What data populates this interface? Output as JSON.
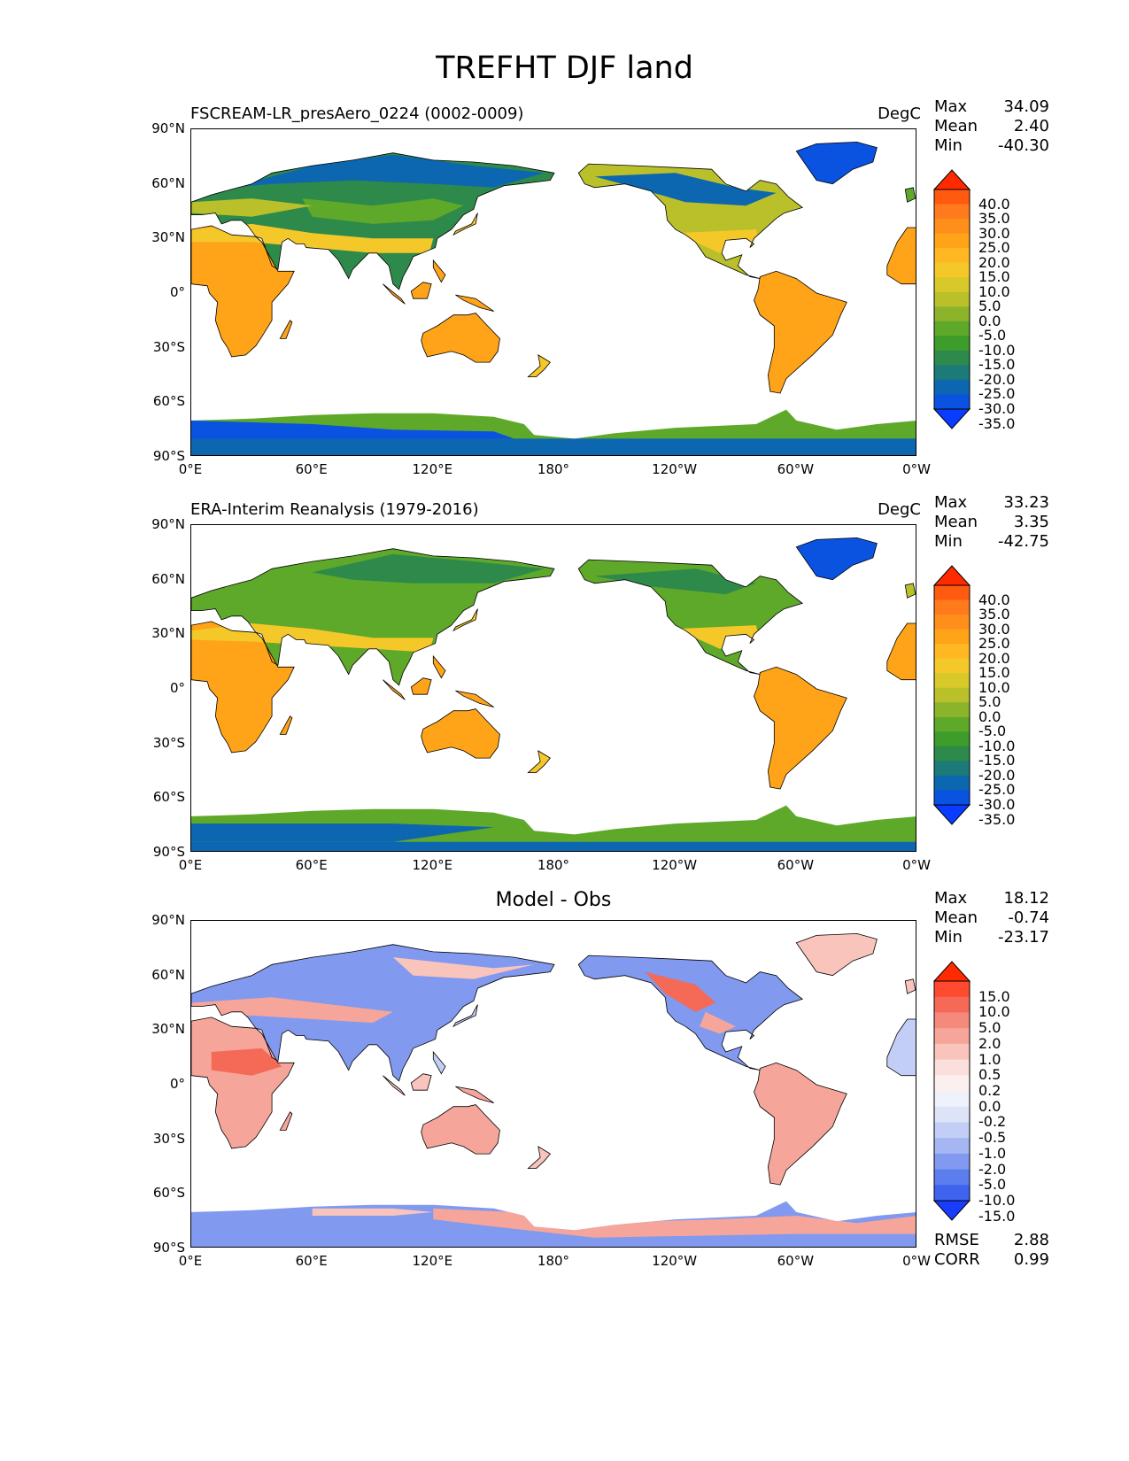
{
  "title": "TREFHT DJF land",
  "y_ticks": [
    "90°N",
    "60°N",
    "30°N",
    "0°",
    "30°S",
    "60°S",
    "90°S"
  ],
  "x_ticks": [
    "0°E",
    "60°E",
    "120°E",
    "180°",
    "120°W",
    "60°W",
    "0°W"
  ],
  "panels": [
    {
      "left_title": "FSCREAM-LR_presAero_0224 (0002-0009)",
      "right_title": "DegC",
      "center_title": "",
      "stats": [
        {
          "label": "Max",
          "value": "34.09"
        },
        {
          "label": "Mean",
          "value": "2.40"
        },
        {
          "label": "Min",
          "value": "-40.30"
        }
      ],
      "colorbar": "temp",
      "extra": []
    },
    {
      "left_title": "ERA-Interim Reanalysis (1979-2016)",
      "right_title": "DegC",
      "center_title": "",
      "stats": [
        {
          "label": "Max",
          "value": "33.23"
        },
        {
          "label": "Mean",
          "value": "3.35"
        },
        {
          "label": "Min",
          "value": "-42.75"
        }
      ],
      "colorbar": "temp",
      "extra": []
    },
    {
      "left_title": "",
      "right_title": "",
      "center_title": "Model - Obs",
      "stats": [
        {
          "label": "Max",
          "value": "18.12"
        },
        {
          "label": "Mean",
          "value": "-0.74"
        },
        {
          "label": "Min",
          "value": "-23.17"
        }
      ],
      "colorbar": "diff",
      "extra": [
        {
          "label": "RMSE",
          "value": "2.88"
        },
        {
          "label": "CORR",
          "value": "0.99"
        }
      ]
    }
  ],
  "colorbars": {
    "temp": {
      "labels": [
        "40.0",
        "35.0",
        "30.0",
        "25.0",
        "20.0",
        "15.0",
        "10.0",
        "5.0",
        "0.0",
        "-5.0",
        "-10.0",
        "-15.0",
        "-20.0",
        "-25.0",
        "-30.0",
        "-35.0"
      ],
      "colors": [
        "#ff2a00",
        "#ff5a10",
        "#ff7a1c",
        "#ff8e1a",
        "#ffa318",
        "#ffb822",
        "#f5c82a",
        "#d9c82a",
        "#b9c02a",
        "#8cb42a",
        "#5ea82a",
        "#3d9c2a",
        "#2e8a4a",
        "#1c7a78",
        "#0d66b0",
        "#0a52e0",
        "#0a3cff"
      ]
    },
    "diff": {
      "labels": [
        "15.0",
        "10.0",
        "5.0",
        "2.0",
        "1.0",
        "0.5",
        "0.2",
        "0.0",
        "-0.2",
        "-0.5",
        "-1.0",
        "-2.0",
        "-5.0",
        "-10.0",
        "-15.0"
      ],
      "colors": [
        "#ff2a00",
        "#ff4a30",
        "#f46a56",
        "#f58a7c",
        "#f6a59a",
        "#f8c4bc",
        "#fadfda",
        "#fbf0ef",
        "#eff2fb",
        "#dde4f8",
        "#c2cef5",
        "#a5b6f2",
        "#8199ef",
        "#5b7ded",
        "#3d63ef",
        "#1a3cff"
      ]
    }
  },
  "map_colors": {
    "temp": {
      "ocean": "#ffffff",
      "tropics": "#ffa318",
      "warm": "#f5c82a",
      "mid": "#b9c02a",
      "cool": "#5ea82a",
      "cold": "#2e8a4a",
      "colder": "#0d66b0",
      "frigid": "#0a52e0"
    },
    "diff": {
      "ocean": "#ffffff",
      "pos_strong": "#f46a56",
      "pos": "#f6a59a",
      "pos_light": "#f8c4bc",
      "neutral": "#eff2fb",
      "neg_light": "#c2cef5",
      "neg": "#8199ef",
      "neg_strong": "#5b7ded"
    }
  }
}
